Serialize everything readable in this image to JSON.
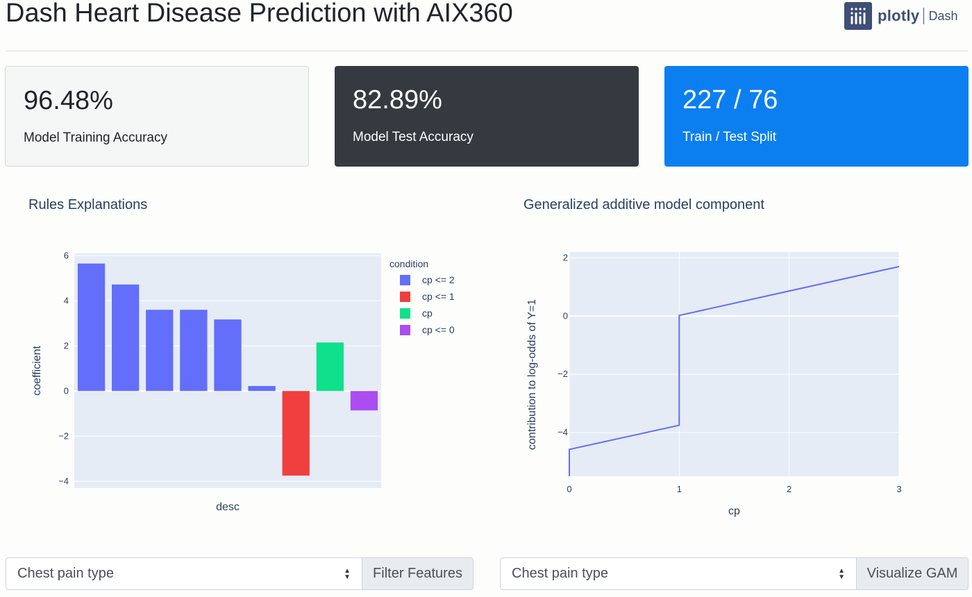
{
  "header": {
    "title": "Dash Heart Disease Prediction with AIX360",
    "logo_word": "plotly",
    "logo_product": "Dash"
  },
  "cards": [
    {
      "value": "96.48%",
      "label": "Model Training Accuracy"
    },
    {
      "value": "82.89%",
      "label": "Model Test Accuracy"
    },
    {
      "value": "227 / 76",
      "label": "Train / Test Split"
    }
  ],
  "rules_panel": {
    "title": "Rules Explanations"
  },
  "gam_panel": {
    "title": "Generalized additive model component"
  },
  "controls": {
    "left": {
      "selected": "Chest pain type",
      "button": "Filter Features"
    },
    "right": {
      "selected": "Chest pain type",
      "button": "Visualize GAM"
    }
  },
  "colors": {
    "plot_bg": "#e5ecf6",
    "series_blue": "#636efa",
    "series_red": "#ef3f3f",
    "series_green": "#0fe08b",
    "series_purple": "#ab4df0"
  },
  "chart_data": [
    {
      "type": "bar",
      "xlabel": "desc",
      "ylabel": "coefficient",
      "ylim": [
        -4.3,
        6.1
      ],
      "yticks": [
        6,
        4,
        2,
        0,
        -2,
        -4
      ],
      "ytick_labels": [
        "6",
        "4",
        "2",
        "0",
        "−2",
        "−4"
      ],
      "legend": {
        "title": "condition",
        "placement": "top-right"
      },
      "series": [
        {
          "name": "cp <= 2",
          "color": "#636efa",
          "values": [
            5.65,
            4.72,
            3.6,
            3.6,
            3.17,
            0.22
          ]
        },
        {
          "name": "cp <= 1",
          "color": "#ef3f3f",
          "values": [
            -3.75
          ]
        },
        {
          "name": "cp",
          "color": "#0fe08b",
          "values": [
            2.15
          ]
        },
        {
          "name": "cp <= 0",
          "color": "#ab4df0",
          "values": [
            -0.86
          ]
        }
      ],
      "bar_order": [
        {
          "series": 0,
          "index": 0
        },
        {
          "series": 0,
          "index": 1
        },
        {
          "series": 0,
          "index": 2
        },
        {
          "series": 0,
          "index": 3
        },
        {
          "series": 0,
          "index": 4
        },
        {
          "series": 0,
          "index": 5
        },
        {
          "series": 1,
          "index": 0
        },
        {
          "series": 2,
          "index": 0
        },
        {
          "series": 3,
          "index": 0
        }
      ]
    },
    {
      "type": "line",
      "xlabel": "cp",
      "ylabel": "contribution to log-odds of Y=1",
      "xlim": [
        0,
        3
      ],
      "ylim": [
        -5.5,
        2.2
      ],
      "xticks": [
        0,
        1,
        2,
        3
      ],
      "yticks": [
        2,
        0,
        -2,
        -4
      ],
      "ytick_labels": [
        "2",
        "0",
        "−2",
        "−4"
      ],
      "series": [
        {
          "color": "#636efa",
          "points": [
            [
              0,
              -5.5
            ],
            [
              0,
              -4.58
            ],
            [
              1,
              -3.75
            ],
            [
              1,
              0.02
            ],
            [
              3,
              1.7
            ]
          ]
        }
      ]
    }
  ]
}
